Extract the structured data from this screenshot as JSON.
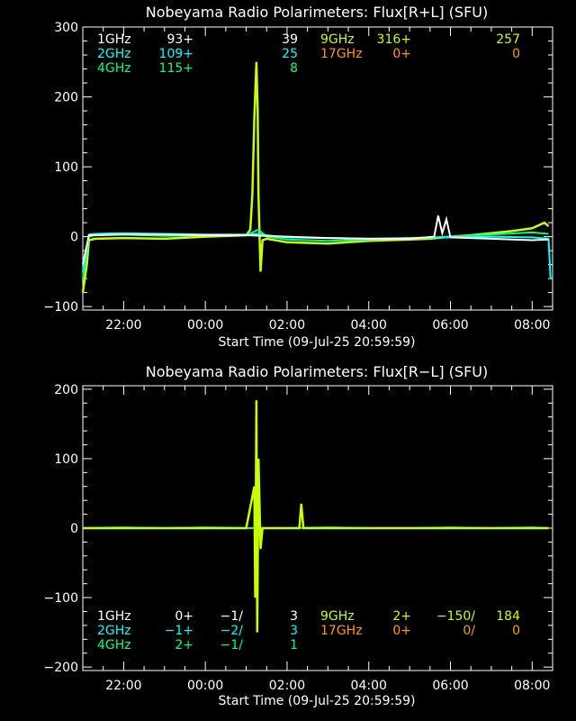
{
  "colors": {
    "background": "#000000",
    "axis": "#ffffff",
    "1GHz": "#ffffff",
    "2GHz": "#00ffff",
    "4GHz": "#00ff80",
    "9GHz": "#c8ff00",
    "17GHz": "#ff9900"
  },
  "chart_data": [
    {
      "type": "line",
      "title": "Nobeyama Radio Polarimeters: Flux[R+L] (SFU)",
      "xlabel": "Start Time (09-Jul-25 20:59:59)",
      "ylabel": "",
      "x_tick_labels": [
        "22:00",
        "00:00",
        "02:00",
        "04:00",
        "06:00",
        "08:00"
      ],
      "y_ticks": [
        -100,
        0,
        100,
        200,
        300
      ],
      "ylim": [
        -105,
        300
      ],
      "x_unit": "hours after 21:00",
      "xlim": [
        0,
        11.5
      ],
      "grid": false,
      "legend": [
        {
          "band": "1GHz",
          "v1": "93+",
          "v2": "",
          "v3": "39"
        },
        {
          "band": "2GHz",
          "v1": "109+",
          "v2": "",
          "v3": "25"
        },
        {
          "band": "4GHz",
          "v1": "115+",
          "v2": "",
          "v3": "8"
        },
        {
          "band": "9GHz",
          "v1": "316+",
          "v2": "",
          "v3": "257"
        },
        {
          "band": "17GHz",
          "v1": "0+",
          "v2": "",
          "v3": "0"
        }
      ],
      "series": [
        {
          "name": "9GHz",
          "x": [
            0.0,
            0.1,
            0.15,
            0.3,
            1.0,
            2.0,
            3.0,
            4.0,
            4.1,
            4.15,
            4.2,
            4.25,
            4.28,
            4.3,
            4.35,
            4.4,
            4.5,
            5.0,
            6.0,
            7.0,
            8.0,
            8.5,
            9.0,
            9.5,
            10.0,
            10.5,
            11.0,
            11.3,
            11.4
          ],
          "y": [
            -80,
            -40,
            -5,
            -3,
            -2,
            -3,
            0,
            2,
            10,
            60,
            170,
            250,
            180,
            60,
            -50,
            -5,
            -3,
            -8,
            -10,
            -6,
            -4,
            -3,
            0,
            2,
            5,
            8,
            12,
            20,
            15
          ]
        },
        {
          "name": "4GHz",
          "x": [
            0.0,
            0.1,
            0.15,
            0.3,
            1.0,
            2.0,
            3.0,
            4.0,
            4.3,
            4.5,
            5.0,
            6.0,
            7.0,
            8.0,
            9.0,
            10.0,
            11.0,
            11.4
          ],
          "y": [
            -60,
            -20,
            0,
            2,
            3,
            1,
            2,
            2,
            10,
            0,
            -4,
            -6,
            -4,
            -2,
            0,
            3,
            6,
            4
          ]
        },
        {
          "name": "2GHz",
          "x": [
            0.0,
            0.1,
            0.15,
            0.3,
            1.0,
            2.0,
            3.0,
            4.0,
            4.3,
            4.5,
            5.0,
            6.0,
            7.0,
            8.0,
            9.0,
            10.0,
            11.0,
            11.4,
            11.45
          ],
          "y": [
            -50,
            -15,
            3,
            4,
            5,
            4,
            3,
            3,
            4,
            2,
            -1,
            -2,
            -3,
            -2,
            -1,
            0,
            -1,
            -3,
            -60
          ]
        },
        {
          "name": "1GHz",
          "x": [
            0.0,
            0.15,
            1.0,
            2.0,
            3.0,
            4.0,
            5.0,
            6.0,
            7.0,
            8.0,
            8.6,
            8.7,
            8.8,
            8.9,
            9.0,
            9.5,
            10.0,
            11.0,
            11.4
          ],
          "y": [
            -40,
            2,
            3,
            3,
            2,
            2,
            0,
            -2,
            -3,
            -3,
            0,
            30,
            5,
            25,
            -1,
            -2,
            -3,
            -5,
            -4
          ]
        }
      ]
    },
    {
      "type": "line",
      "title": "Nobeyama Radio Polarimeters: Flux[R−L] (SFU)",
      "xlabel": "Start Time (09-Jul-25 20:59:59)",
      "ylabel": "",
      "x_tick_labels": [
        "22:00",
        "00:00",
        "02:00",
        "04:00",
        "06:00",
        "08:00"
      ],
      "y_ticks": [
        -200,
        -100,
        0,
        100,
        200
      ],
      "ylim": [
        -205,
        205
      ],
      "x_unit": "hours after 21:00",
      "xlim": [
        0,
        11.5
      ],
      "grid": false,
      "legend": [
        {
          "band": "1GHz",
          "v1": "0+",
          "v2": "−1/",
          "v3": "3"
        },
        {
          "band": "2GHz",
          "v1": "−1+",
          "v2": "−2/",
          "v3": "3"
        },
        {
          "band": "4GHz",
          "v1": "2+",
          "v2": "−1/",
          "v3": "1"
        },
        {
          "band": "9GHz",
          "v1": "2+",
          "v2": "−150/",
          "v3": "184"
        },
        {
          "band": "17GHz",
          "v1": "0+",
          "v2": "0/",
          "v3": "0"
        }
      ],
      "series": [
        {
          "name": "4GHz",
          "x": [
            0.0,
            1.0,
            2.0,
            3.0,
            4.0,
            5.0,
            6.0,
            7.0,
            8.0,
            9.0,
            10.0,
            11.0,
            11.4
          ],
          "y": [
            0,
            1,
            0,
            1,
            0,
            0,
            1,
            0,
            0,
            1,
            0,
            1,
            0
          ]
        },
        {
          "name": "9GHz",
          "x": [
            0.0,
            1.0,
            2.0,
            3.0,
            4.0,
            4.2,
            4.22,
            4.25,
            4.27,
            4.3,
            4.35,
            4.4,
            5.0,
            5.3,
            5.35,
            5.4,
            6.0,
            7.0,
            8.0,
            9.0,
            10.0,
            11.0,
            11.4
          ],
          "y": [
            0,
            0,
            0,
            0,
            0,
            60,
            -100,
            184,
            -150,
            100,
            -30,
            0,
            0,
            0,
            35,
            0,
            0,
            0,
            0,
            0,
            0,
            0,
            0
          ]
        }
      ]
    }
  ]
}
